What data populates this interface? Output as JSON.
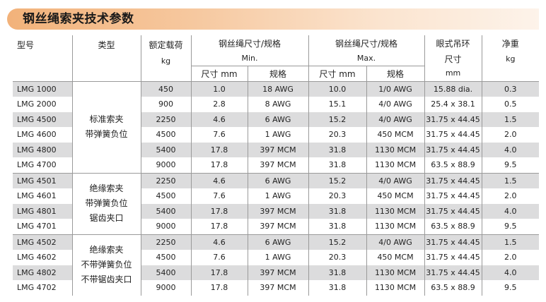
{
  "title": "钢丝绳索夹技术参数",
  "headers": {
    "model": "型号",
    "type": "类型",
    "load": "额定载荷",
    "load_unit": "kg",
    "wire_min": "钢丝绳尺寸/规格",
    "wire_min_sub": "Min.",
    "wire_max": "钢丝绳尺寸/规格",
    "wire_max_sub": "Max.",
    "size_col": "尺寸 mm",
    "spec_col": "规格",
    "eye_line1": "眼式吊环",
    "eye_line2": "尺寸",
    "eye_unit": "mm",
    "weight": "净重",
    "weight_unit": "kg"
  },
  "groups": [
    {
      "type_lines": [
        "标准索夹",
        "带弹簧负位"
      ],
      "rows": [
        {
          "model": "LMG 1000",
          "load": "450",
          "min_size": "1.0",
          "min_spec": "18 AWG",
          "max_size": "10.0",
          "max_spec": "1/0 AWG",
          "eye": "15.88 dia.",
          "weight": "0.3"
        },
        {
          "model": "LMG 2000",
          "load": "900",
          "min_size": "2.8",
          "min_spec": "8 AWG",
          "max_size": "15.1",
          "max_spec": "4/0 AWG",
          "eye": "25.4 x 38.1",
          "weight": "0.5"
        },
        {
          "model": "LMG 4500",
          "load": "2250",
          "min_size": "4.6",
          "min_spec": "6 AWG",
          "max_size": "15.2",
          "max_spec": "4/0 AWG",
          "eye": "31.75 x 44.45",
          "weight": "1.5"
        },
        {
          "model": "LMG 4600",
          "load": "4500",
          "min_size": "7.6",
          "min_spec": "1 AWG",
          "max_size": "20.3",
          "max_spec": "450 MCM",
          "eye": "31.75 x 44.45",
          "weight": "2.0"
        },
        {
          "model": "LMG 4800",
          "load": "5400",
          "min_size": "17.8",
          "min_spec": "397 MCM",
          "max_size": "31.8",
          "max_spec": "1130 MCM",
          "eye": "31.75 x 44.45",
          "weight": "4.0"
        },
        {
          "model": "LMG 4700",
          "load": "9000",
          "min_size": "17.8",
          "min_spec": "397 MCM",
          "max_size": "31.8",
          "max_spec": "1130 MCM",
          "eye": "63.5 x 88.9",
          "weight": "9.5"
        }
      ]
    },
    {
      "type_lines": [
        "绝缘索夹",
        "带弹簧负位",
        "锯齿夹口"
      ],
      "rows": [
        {
          "model": "LMG 4501",
          "load": "2250",
          "min_size": "4.6",
          "min_spec": "6 AWG",
          "max_size": "15.2",
          "max_spec": "4/0 AWG",
          "eye": "31.75 x 44.45",
          "weight": "1.5"
        },
        {
          "model": "LMG 4601",
          "load": "4500",
          "min_size": "7.6",
          "min_spec": "1 AWG",
          "max_size": "20.3",
          "max_spec": "450 MCM",
          "eye": "31.75 x 44.45",
          "weight": "2.0"
        },
        {
          "model": "LMG 4801",
          "load": "5400",
          "min_size": "17.8",
          "min_spec": "397 MCM",
          "max_size": "31.8",
          "max_spec": "1130 MCM",
          "eye": "31.75 x 44.45",
          "weight": "4.0"
        },
        {
          "model": "LMG 4701",
          "load": "9000",
          "min_size": "17.8",
          "min_spec": "397 MCM",
          "max_size": "31.8",
          "max_spec": "1130 MCM",
          "eye": "63.5 x 88.9",
          "weight": "9.5"
        }
      ]
    },
    {
      "type_lines": [
        "绝缘索夹",
        "不带弹簧负位",
        "不带锯齿夹口"
      ],
      "rows": [
        {
          "model": "LMG 4502",
          "load": "2250",
          "min_size": "4.6",
          "min_spec": "6 AWG",
          "max_size": "15.2",
          "max_spec": "4/0 AWG",
          "eye": "31.75 x 44.45",
          "weight": "1.5"
        },
        {
          "model": "LMG 4602",
          "load": "4500",
          "min_size": "7.6",
          "min_spec": "1 AWG",
          "max_size": "20.3",
          "max_spec": "450 MCM",
          "eye": "31.75 x 44.45",
          "weight": "2.0"
        },
        {
          "model": "LMG 4802",
          "load": "5400",
          "min_size": "17.8",
          "min_spec": "397 MCM",
          "max_size": "31.8",
          "max_spec": "1130 MCM",
          "eye": "31.75 x 44.45",
          "weight": "4.0"
        },
        {
          "model": "LMG 4702",
          "load": "9000",
          "min_size": "17.8",
          "min_spec": "397 MCM",
          "max_size": "31.8",
          "max_spec": "1130 MCM",
          "eye": "63.5 x 88.9",
          "weight": "9.5"
        }
      ]
    }
  ],
  "colors": {
    "title_bar": "#f2b27a",
    "row_shade": "#dcdcdd",
    "grid_line": "#9a9a9a"
  }
}
